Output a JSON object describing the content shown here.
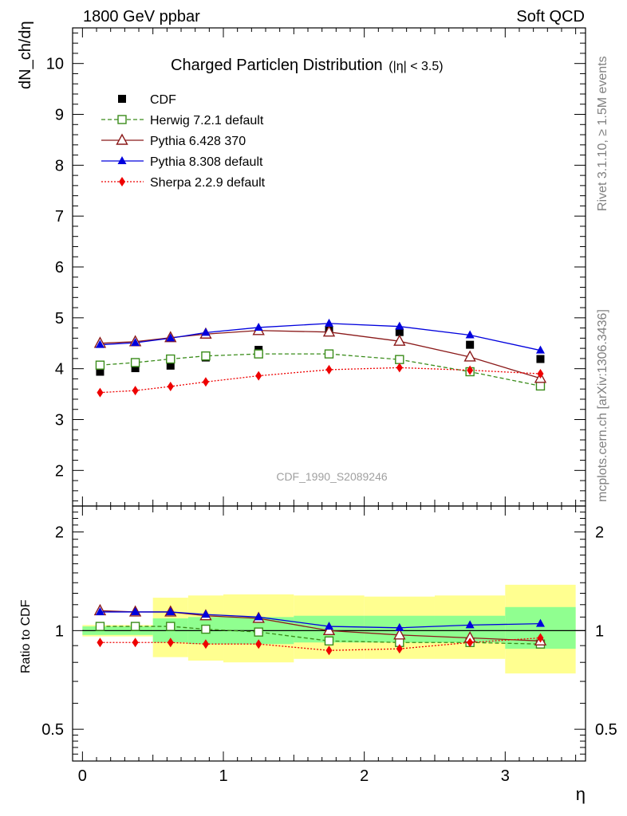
{
  "header": {
    "left": "1800 GeV ppbar",
    "right": "Soft QCD"
  },
  "side_text": {
    "top": "Rivet 3.1.10, ≥ 1.5M events",
    "bottom": "mcplots.cern.ch [arXiv:1306.3436]"
  },
  "analysis_id": "CDF_1990_S2089246",
  "chart_data": [
    {
      "type": "line",
      "title": "Charged Particleη Distribution",
      "title_note": "(|η| < 3.5)",
      "ylabel": "dN_ch/dη",
      "xlabel": "",
      "xlim": [
        -0.07,
        3.57
      ],
      "ylim": [
        1.3,
        10.7
      ],
      "yticks": [
        2,
        3,
        4,
        5,
        6,
        7,
        8,
        9,
        10
      ],
      "legend_position": "top-left",
      "x": [
        0.125,
        0.375,
        0.625,
        0.875,
        1.25,
        1.75,
        2.25,
        2.75,
        3.25
      ],
      "series": [
        {
          "name": "CDF",
          "marker": "filled-square",
          "color": "#000000",
          "values": [
            3.94,
            4.01,
            4.06,
            4.22,
            4.37,
            4.75,
            4.72,
            4.47,
            4.19
          ]
        },
        {
          "name": "Herwig 7.2.1 default",
          "marker": "open-square",
          "color": "#3a8c1a",
          "values": [
            4.07,
            4.12,
            4.19,
            4.25,
            4.29,
            4.29,
            4.18,
            3.94,
            3.66
          ]
        },
        {
          "name": "Pythia 6.428 370",
          "marker": "open-triangle",
          "color": "#8b1a1a",
          "values": [
            4.5,
            4.53,
            4.61,
            4.68,
            4.75,
            4.72,
            4.54,
            4.23,
            3.81
          ]
        },
        {
          "name": "Pythia 8.308 default",
          "marker": "filled-triangle",
          "color": "#0000dd",
          "values": [
            4.47,
            4.51,
            4.6,
            4.71,
            4.81,
            4.89,
            4.83,
            4.66,
            4.36
          ]
        },
        {
          "name": "Sherpa 2.2.9 default",
          "marker": "filled-diamond",
          "color": "#ee0000",
          "values": [
            3.53,
            3.57,
            3.65,
            3.74,
            3.86,
            3.98,
            4.02,
            3.97,
            3.9
          ]
        }
      ]
    },
    {
      "type": "line",
      "ylabel": "Ratio to CDF",
      "xlabel": "η",
      "xlim": [
        -0.07,
        3.57
      ],
      "ylim": [
        0.4,
        2.4
      ],
      "y_scale": "log",
      "yticks": [
        0.5,
        1,
        2
      ],
      "ytick_labels": [
        "0.5",
        "1",
        "2"
      ],
      "xticks": [
        0,
        1,
        2,
        3
      ],
      "xtick_labels": [
        "0",
        "1",
        "2",
        "3"
      ],
      "reference_line": 1,
      "bands": {
        "edges": [
          0,
          0.5,
          0.75,
          1,
          1.5,
          2,
          2.5,
          3,
          3.5
        ],
        "stat_color": "#90ff90",
        "total_color": "#ffff90",
        "stat": [
          [
            0.97,
            1.03
          ],
          [
            0.92,
            1.09
          ],
          [
            0.91,
            1.1
          ],
          [
            0.91,
            1.1
          ],
          [
            0.92,
            1.11
          ],
          [
            0.92,
            1.11
          ],
          [
            0.92,
            1.11
          ],
          [
            0.88,
            1.18
          ]
        ],
        "total": [
          [
            0.96,
            1.04
          ],
          [
            0.83,
            1.26
          ],
          [
            0.81,
            1.28
          ],
          [
            0.8,
            1.29
          ],
          [
            0.82,
            1.28
          ],
          [
            0.82,
            1.27
          ],
          [
            0.82,
            1.28
          ],
          [
            0.74,
            1.38
          ]
        ]
      },
      "series": [
        {
          "name": "Herwig 7.2.1 default",
          "color": "#3a8c1a",
          "values": [
            1.03,
            1.03,
            1.03,
            1.01,
            0.99,
            0.93,
            0.92,
            0.92,
            0.91
          ]
        },
        {
          "name": "Pythia 6.428 370",
          "color": "#8b1a1a",
          "values": [
            1.15,
            1.14,
            1.14,
            1.11,
            1.09,
            1.0,
            0.97,
            0.95,
            0.93
          ]
        },
        {
          "name": "Pythia 8.308 default",
          "color": "#0000dd",
          "values": [
            1.14,
            1.14,
            1.14,
            1.12,
            1.1,
            1.03,
            1.02,
            1.04,
            1.05
          ]
        },
        {
          "name": "Sherpa 2.2.9 default",
          "color": "#ee0000",
          "values": [
            0.92,
            0.92,
            0.92,
            0.91,
            0.91,
            0.87,
            0.88,
            0.92,
            0.95
          ]
        }
      ]
    }
  ]
}
